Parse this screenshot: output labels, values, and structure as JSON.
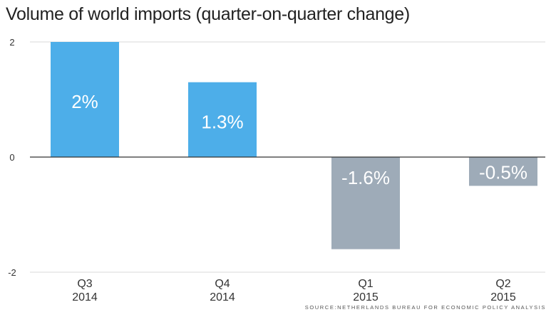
{
  "chart_data": {
    "type": "bar",
    "title": "Volume of world imports (quarter-on-quarter change)",
    "categories": [
      {
        "quarter": "Q3",
        "year": "2014"
      },
      {
        "quarter": "Q4",
        "year": "2014"
      },
      {
        "quarter": "Q1",
        "year": "2015"
      },
      {
        "quarter": "Q2",
        "year": "2015"
      }
    ],
    "values": [
      2,
      1.3,
      -1.6,
      -0.5
    ],
    "data_labels": [
      "2%",
      "1.3%",
      "-1.6%",
      "-0.5%"
    ],
    "y_ticks": [
      {
        "value": 2,
        "label": "2"
      },
      {
        "value": 0,
        "label": "0"
      },
      {
        "value": -2,
        "label": "-2"
      }
    ],
    "ylim": [
      -2,
      2
    ],
    "xlabel": "",
    "ylabel": "",
    "grid": "horizontal",
    "legend": "none",
    "colors": {
      "positive": "#4daee9",
      "negative": "#9eabb8",
      "gridline": "#d8d8d8",
      "zero_line": "#333333",
      "text": "#333333",
      "label_text": "#ffffff"
    },
    "source": "SOURCE:NETHERLANDS BUREAU FOR ECONOMIC POLICY ANALYSIS"
  }
}
